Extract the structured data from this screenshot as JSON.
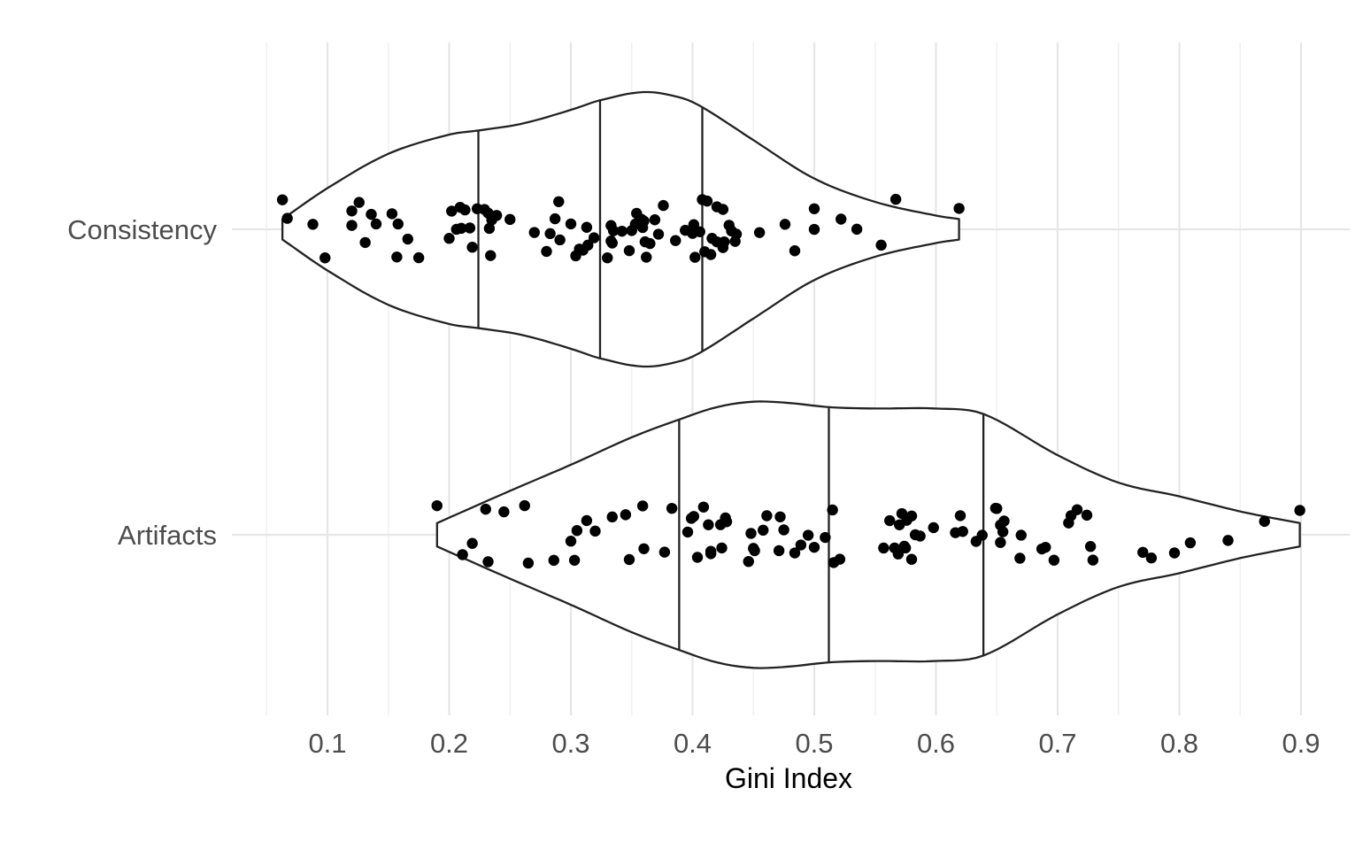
{
  "chart_data": {
    "type": "violin",
    "xlabel": "Gini Index",
    "ylabel": "",
    "xlim": [
      0.05,
      0.915
    ],
    "x_ticks": [
      0.1,
      0.2,
      0.3,
      0.4,
      0.5,
      0.6,
      0.7,
      0.8,
      0.9
    ],
    "x_tick_labels": [
      "0.1",
      "0.2",
      "0.3",
      "0.4",
      "0.5",
      "0.6",
      "0.7",
      "0.8",
      "0.9"
    ],
    "categories": [
      "Consistency",
      "Artifacts"
    ],
    "grid": true,
    "legend": "none",
    "series": [
      {
        "category": "Consistency",
        "range": [
          0.063,
          0.619
        ],
        "quantiles": [
          0.224,
          0.324,
          0.408
        ],
        "density_profile": [
          [
            0.063,
            0.075
          ],
          [
            0.1,
            0.3
          ],
          [
            0.15,
            0.55
          ],
          [
            0.2,
            0.69
          ],
          [
            0.224,
            0.72
          ],
          [
            0.26,
            0.77
          ],
          [
            0.3,
            0.87
          ],
          [
            0.324,
            0.94
          ],
          [
            0.36,
            1.0
          ],
          [
            0.39,
            0.96
          ],
          [
            0.408,
            0.89
          ],
          [
            0.45,
            0.65
          ],
          [
            0.5,
            0.37
          ],
          [
            0.55,
            0.2
          ],
          [
            0.6,
            0.1
          ],
          [
            0.619,
            0.075
          ]
        ],
        "points": [
          0.063,
          0.067,
          0.088,
          0.098,
          0.12,
          0.12,
          0.126,
          0.131,
          0.136,
          0.14,
          0.153,
          0.157,
          0.158,
          0.166,
          0.175,
          0.2,
          0.202,
          0.206,
          0.209,
          0.21,
          0.213,
          0.217,
          0.219,
          0.223,
          0.229,
          0.232,
          0.233,
          0.234,
          0.235,
          0.239,
          0.25,
          0.27,
          0.28,
          0.283,
          0.287,
          0.29,
          0.291,
          0.3,
          0.304,
          0.307,
          0.31,
          0.313,
          0.314,
          0.319,
          0.33,
          0.333,
          0.333,
          0.334,
          0.335,
          0.342,
          0.348,
          0.35,
          0.353,
          0.354,
          0.358,
          0.359,
          0.36,
          0.361,
          0.362,
          0.365,
          0.369,
          0.372,
          0.376,
          0.386,
          0.394,
          0.4,
          0.401,
          0.402,
          0.406,
          0.408,
          0.41,
          0.412,
          0.415,
          0.416,
          0.42,
          0.42,
          0.425,
          0.425,
          0.426,
          0.43,
          0.432,
          0.435,
          0.436,
          0.455,
          0.476,
          0.484,
          0.5,
          0.5,
          0.522,
          0.535,
          0.555,
          0.567,
          0.619
        ]
      },
      {
        "category": "Artifacts",
        "range": [
          0.19,
          0.899
        ],
        "quantiles": [
          0.389,
          0.512,
          0.639
        ],
        "density_profile": [
          [
            0.19,
            0.085
          ],
          [
            0.25,
            0.32
          ],
          [
            0.3,
            0.51
          ],
          [
            0.35,
            0.71
          ],
          [
            0.389,
            0.84
          ],
          [
            0.42,
            0.93
          ],
          [
            0.45,
            0.97
          ],
          [
            0.48,
            0.96
          ],
          [
            0.512,
            0.93
          ],
          [
            0.55,
            0.92
          ],
          [
            0.6,
            0.92
          ],
          [
            0.639,
            0.88
          ],
          [
            0.7,
            0.58
          ],
          [
            0.75,
            0.38
          ],
          [
            0.8,
            0.28
          ],
          [
            0.85,
            0.17
          ],
          [
            0.899,
            0.085
          ]
        ],
        "points": [
          0.19,
          0.211,
          0.219,
          0.23,
          0.232,
          0.245,
          0.262,
          0.265,
          0.286,
          0.3,
          0.303,
          0.305,
          0.313,
          0.32,
          0.334,
          0.345,
          0.348,
          0.359,
          0.36,
          0.377,
          0.383,
          0.396,
          0.399,
          0.401,
          0.404,
          0.409,
          0.413,
          0.415,
          0.415,
          0.423,
          0.424,
          0.427,
          0.428,
          0.446,
          0.448,
          0.45,
          0.451,
          0.458,
          0.461,
          0.471,
          0.472,
          0.475,
          0.484,
          0.489,
          0.495,
          0.5,
          0.509,
          0.515,
          0.516,
          0.521,
          0.557,
          0.562,
          0.566,
          0.569,
          0.57,
          0.572,
          0.574,
          0.575,
          0.576,
          0.58,
          0.58,
          0.583,
          0.587,
          0.598,
          0.616,
          0.62,
          0.622,
          0.633,
          0.638,
          0.649,
          0.65,
          0.653,
          0.653,
          0.655,
          0.656,
          0.669,
          0.67,
          0.687,
          0.69,
          0.697,
          0.709,
          0.711,
          0.716,
          0.724,
          0.727,
          0.729,
          0.77,
          0.777,
          0.796,
          0.809,
          0.84,
          0.87,
          0.899
        ]
      }
    ]
  }
}
